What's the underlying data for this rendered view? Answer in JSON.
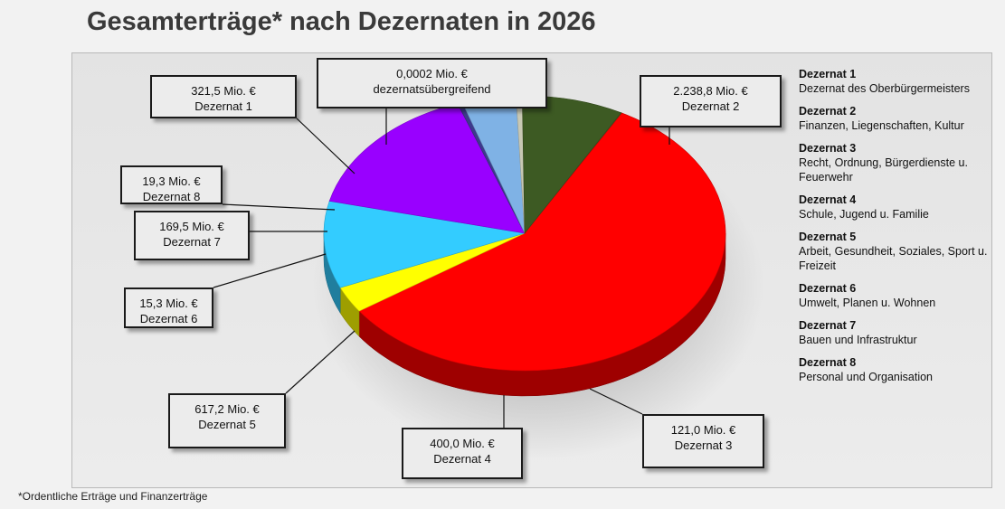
{
  "title": "Gesamterträge* nach Dezernaten in 2026",
  "footnote": "*Ordentliche Erträge und Finanzerträge",
  "legend": [
    {
      "head": "Dezernat 1",
      "desc": "Dezernat des Oberbürgermeisters"
    },
    {
      "head": "Dezernat 2",
      "desc": "Finanzen, Liegenschaften, Kultur"
    },
    {
      "head": "Dezernat 3",
      "desc": "Recht, Ordnung, Bürgerdienste u. Feuerwehr"
    },
    {
      "head": "Dezernat 4",
      "desc": "Schule, Jugend u. Familie"
    },
    {
      "head": "Dezernat 5",
      "desc": "Arbeit, Gesundheit, Soziales, Sport u. Freizeit"
    },
    {
      "head": "Dezernat 6",
      "desc": "Umwelt, Planen u. Wohnen"
    },
    {
      "head": "Dezernat 7",
      "desc": "Bauen und Infrastruktur"
    },
    {
      "head": "Dezernat 8",
      "desc": "Personal und Organisation"
    }
  ],
  "chart_data": {
    "type": "pie",
    "title": "Gesamterträge* nach Dezernaten in 2026",
    "unit": "Mio. €",
    "legend_placement": "right",
    "slices": [
      {
        "label": "dezernatsübergreifend",
        "value": 0.0002,
        "value_label": "0,0002 Mio. €",
        "color": "#3a6b1f"
      },
      {
        "label": "Dezernat 2",
        "value": 2238.8,
        "value_label": "2.238,8 Mio. €",
        "color": "#ff0000"
      },
      {
        "label": "Dezernat 3",
        "value": 121.0,
        "value_label": "121,0 Mio. €",
        "color": "#ffff00"
      },
      {
        "label": "Dezernat 4",
        "value": 400.0,
        "value_label": "400,0 Mio. €",
        "color": "#33ccff"
      },
      {
        "label": "Dezernat 5",
        "value": 617.2,
        "value_label": "617,2 Mio. €",
        "color": "#9900ff"
      },
      {
        "label": "Dezernat 6",
        "value": 15.3,
        "value_label": "15,3 Mio. €",
        "color": "#3d3b8c"
      },
      {
        "label": "Dezernat 7",
        "value": 169.5,
        "value_label": "169,5 Mio. €",
        "color": "#7fb2e5"
      },
      {
        "label": "Dezernat 8",
        "value": 19.3,
        "value_label": "19,3 Mio. €",
        "color": "#c8c8b4"
      },
      {
        "label": "Dezernat 1",
        "value": 321.5,
        "value_label": "321,5 Mio. €",
        "color": "#3d5a23"
      }
    ]
  }
}
